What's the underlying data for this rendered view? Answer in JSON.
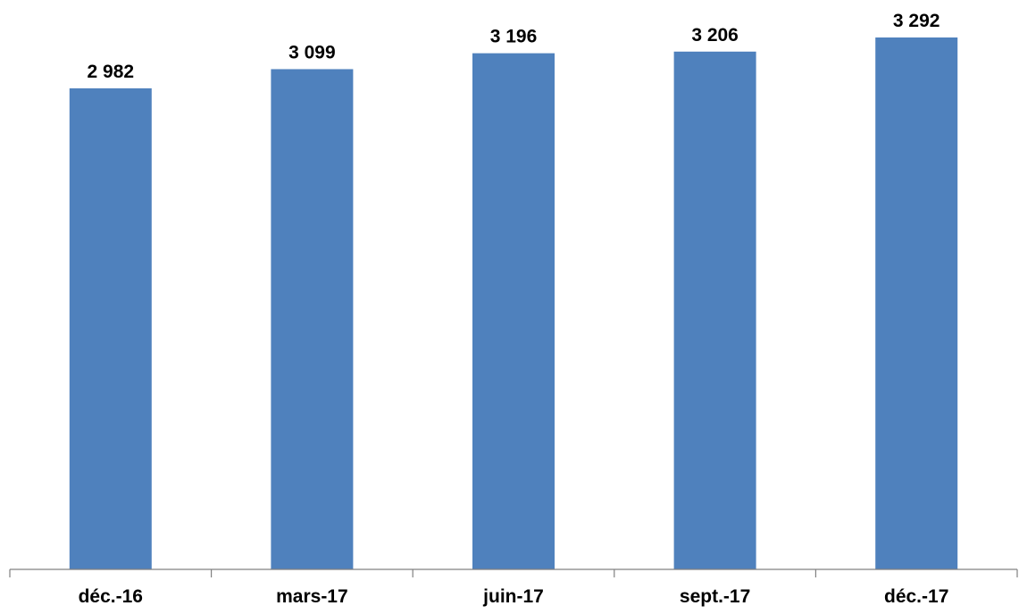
{
  "chart_data": {
    "type": "bar",
    "title": "",
    "xlabel": "",
    "ylabel": "",
    "categories": [
      "déc.-16",
      "mars-17",
      "juin-17",
      "sept.-17",
      "déc.-17"
    ],
    "values": [
      2982,
      3099,
      3196,
      3206,
      3292
    ],
    "value_labels": [
      "2 982",
      "3 099",
      "3 196",
      "3 206",
      "3 292"
    ],
    "bar_color": "#4F81BD",
    "axis_color": "#808080",
    "grid": false,
    "legend": "none"
  }
}
